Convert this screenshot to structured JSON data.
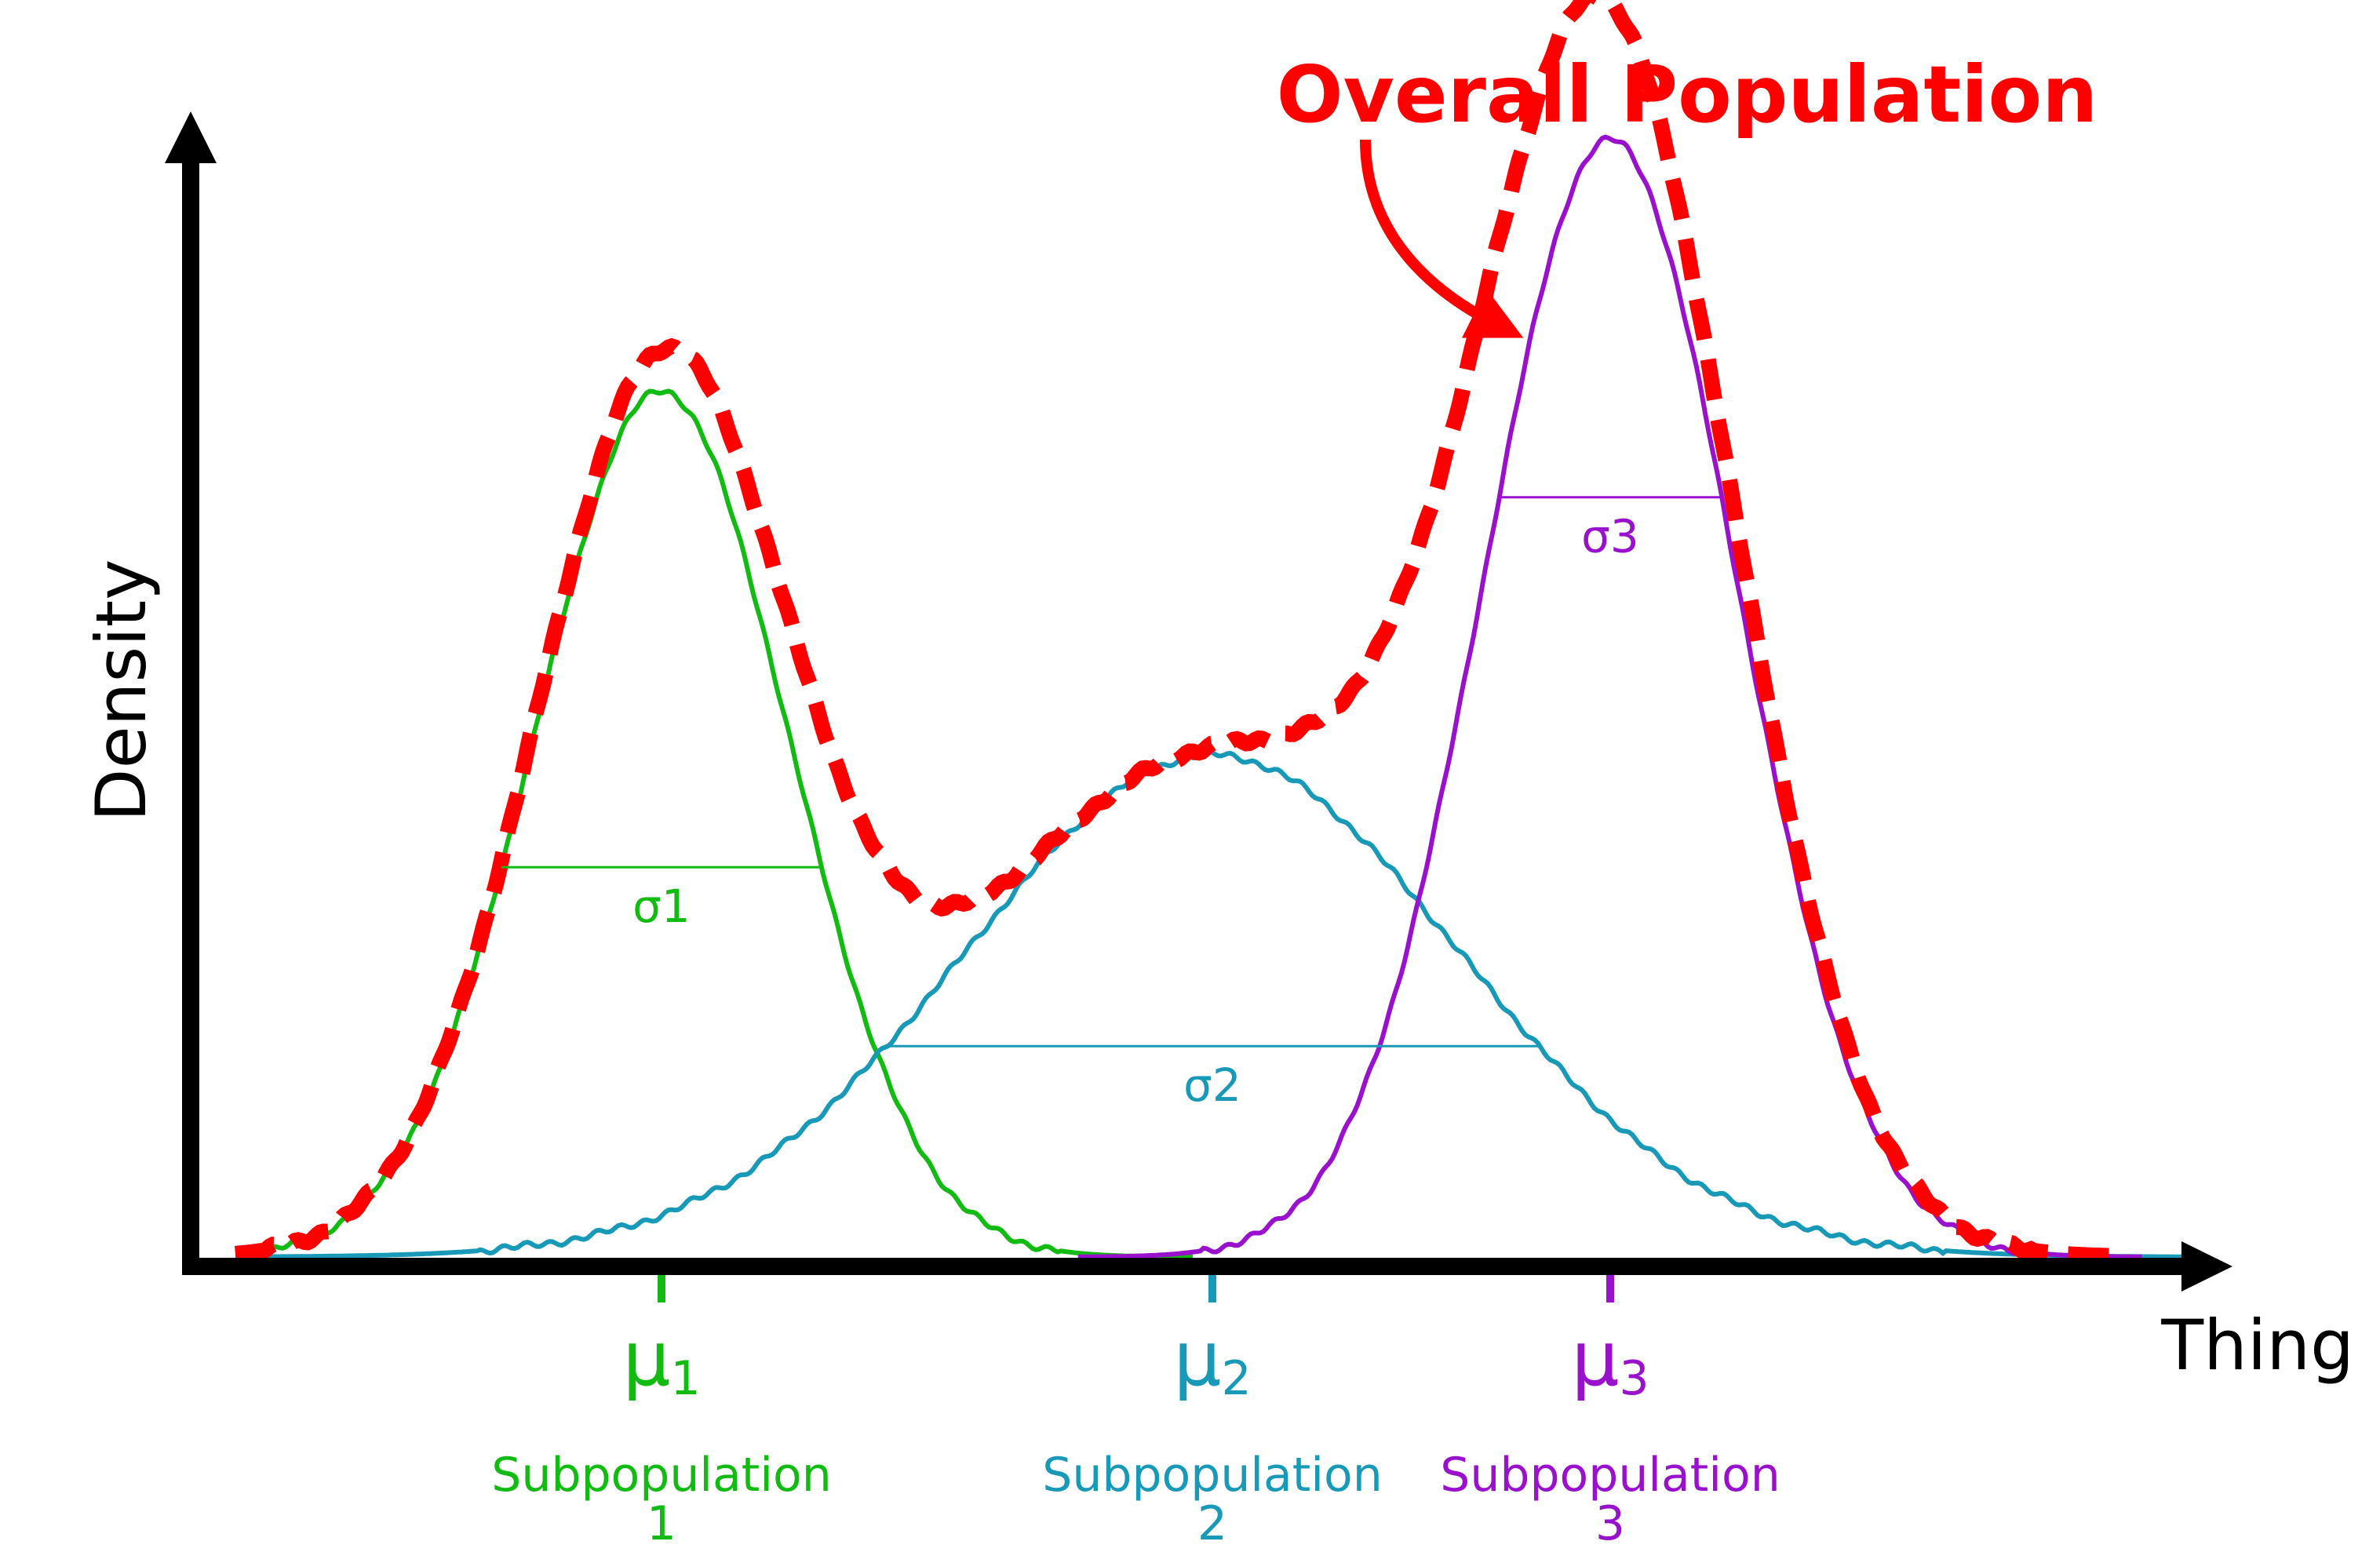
{
  "axes": {
    "x_label": "Thing",
    "y_label": "Density"
  },
  "overall": {
    "label": "Overall Population",
    "color": "#ff0000"
  },
  "subpopulations": [
    {
      "mean_symbol": "μ",
      "mean_index": "1",
      "sigma_label": "σ1",
      "label_line1": "Subpopulation",
      "label_line2": "1",
      "color": "#11bb11",
      "mean": 1.0,
      "sigma": 0.85,
      "peak": 0.345
    },
    {
      "mean_symbol": "μ",
      "mean_index": "2",
      "sigma_label": "σ2",
      "label_line1": "Subpopulation",
      "label_line2": "2",
      "color": "#1899b8",
      "mean": 2.25,
      "sigma": 1.45,
      "peak": 0.2
    },
    {
      "mean_symbol": "μ",
      "mean_index": "3",
      "sigma_label": "σ3",
      "label_line1": "Subpopulation",
      "label_line2": "3",
      "color": "#9911cc",
      "mean": 3.1,
      "sigma": 0.85,
      "peak": 0.445
    }
  ]
}
